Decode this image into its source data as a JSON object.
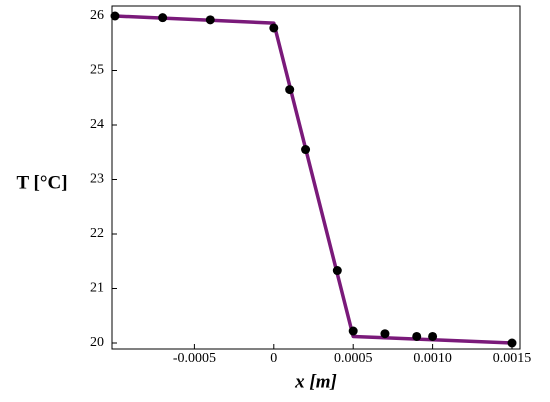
{
  "chart_data": {
    "type": "line",
    "x_label": "x [m]",
    "y_label": "T [°C]",
    "xlim": [
      -0.001,
      0.0015
    ],
    "ylim": [
      20,
      26
    ],
    "xticks": [
      -0.0005,
      0,
      0.0005,
      {
        "value": 0.001,
        "label": "0.0010"
      },
      0.0015
    ],
    "yticks": [
      20,
      21,
      22,
      23,
      24,
      25,
      26
    ],
    "series": [
      {
        "type": "line",
        "color": "#7a1a7a",
        "x": [
          -0.001,
          0,
          0.0005,
          0.0015
        ],
        "values": [
          26,
          25.87,
          20.12,
          20.0
        ]
      },
      {
        "type": "scatter",
        "color": "#000000",
        "x": [
          -0.001,
          -0.0007,
          -0.0004,
          0,
          0.0001,
          0.0002,
          0.0004,
          0.0005,
          0.0007,
          0.0009,
          0.001,
          0.0015
        ],
        "values": [
          26,
          25.97,
          25.93,
          25.78,
          24.65,
          23.55,
          21.33,
          20.22,
          20.17,
          20.12,
          20.12,
          20.0
        ]
      }
    ]
  }
}
